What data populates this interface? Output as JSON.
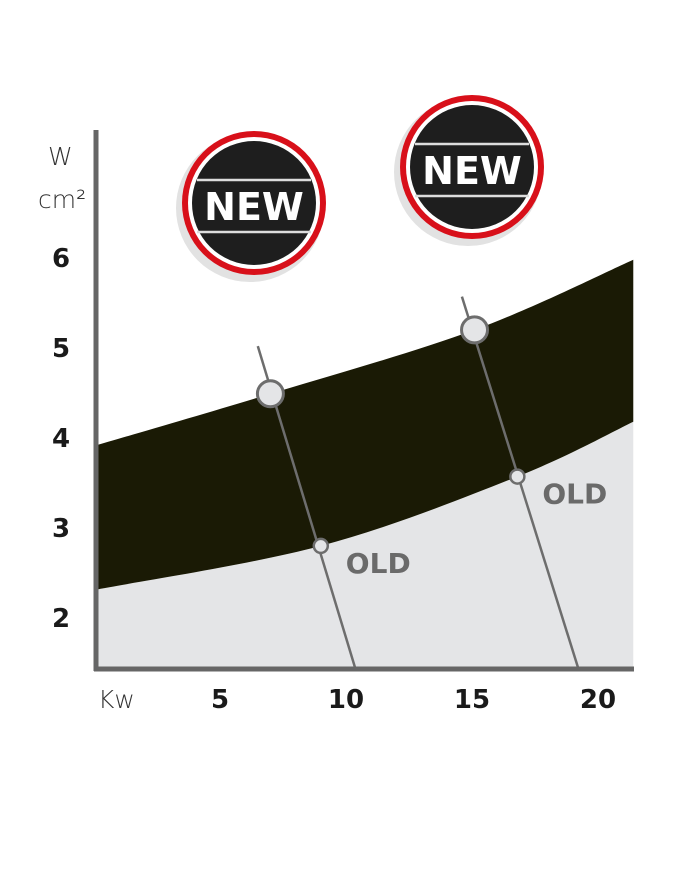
{
  "chart_data": {
    "type": "area",
    "title": "",
    "ylabel_top": "W",
    "ylabel_bottom": "cm²",
    "xlabel": "Kw",
    "xlim": [
      0,
      21.4
    ],
    "ylim": [
      1.4,
      6.6
    ],
    "x_ticks": [
      "5",
      "10",
      "15",
      "20"
    ],
    "x_tick_values": [
      5,
      10,
      15,
      20
    ],
    "y_ticks": [
      "6",
      "5",
      "4",
      "3",
      "2"
    ],
    "y_tick_values": [
      6,
      5,
      4,
      3,
      2
    ],
    "grid": false,
    "band": {
      "color": "#1a1a05",
      "upper": [
        [
          0,
          3.9
        ],
        [
          7,
          4.48
        ],
        [
          15.1,
          5.19
        ],
        [
          21.4,
          5.97
        ]
      ],
      "lower": [
        [
          0,
          2.3
        ],
        [
          9,
          2.79
        ],
        [
          16.8,
          3.56
        ],
        [
          21.4,
          4.17
        ]
      ]
    },
    "below_fill_color": "#e4e5e7",
    "lines": [
      {
        "from": [
          6.5,
          5.01
        ],
        "to": [
          10.4,
          1.4
        ],
        "new_point": [
          7.0,
          4.48
        ],
        "old_point": [
          9.0,
          2.79
        ],
        "old_label": "OLD"
      },
      {
        "from": [
          14.6,
          5.56
        ],
        "to": [
          19.25,
          1.4
        ],
        "new_point": [
          15.1,
          5.19
        ],
        "old_point": [
          16.8,
          3.56
        ],
        "old_label": "OLD"
      }
    ],
    "badges": [
      {
        "label": "NEW",
        "ring_color": "#d8101a",
        "fill_color": "#1e1e1e"
      },
      {
        "label": "NEW",
        "ring_color": "#d8101a",
        "fill_color": "#1e1e1e"
      }
    ],
    "axis_color": "#666666",
    "line_color": "#6d6d6d"
  }
}
